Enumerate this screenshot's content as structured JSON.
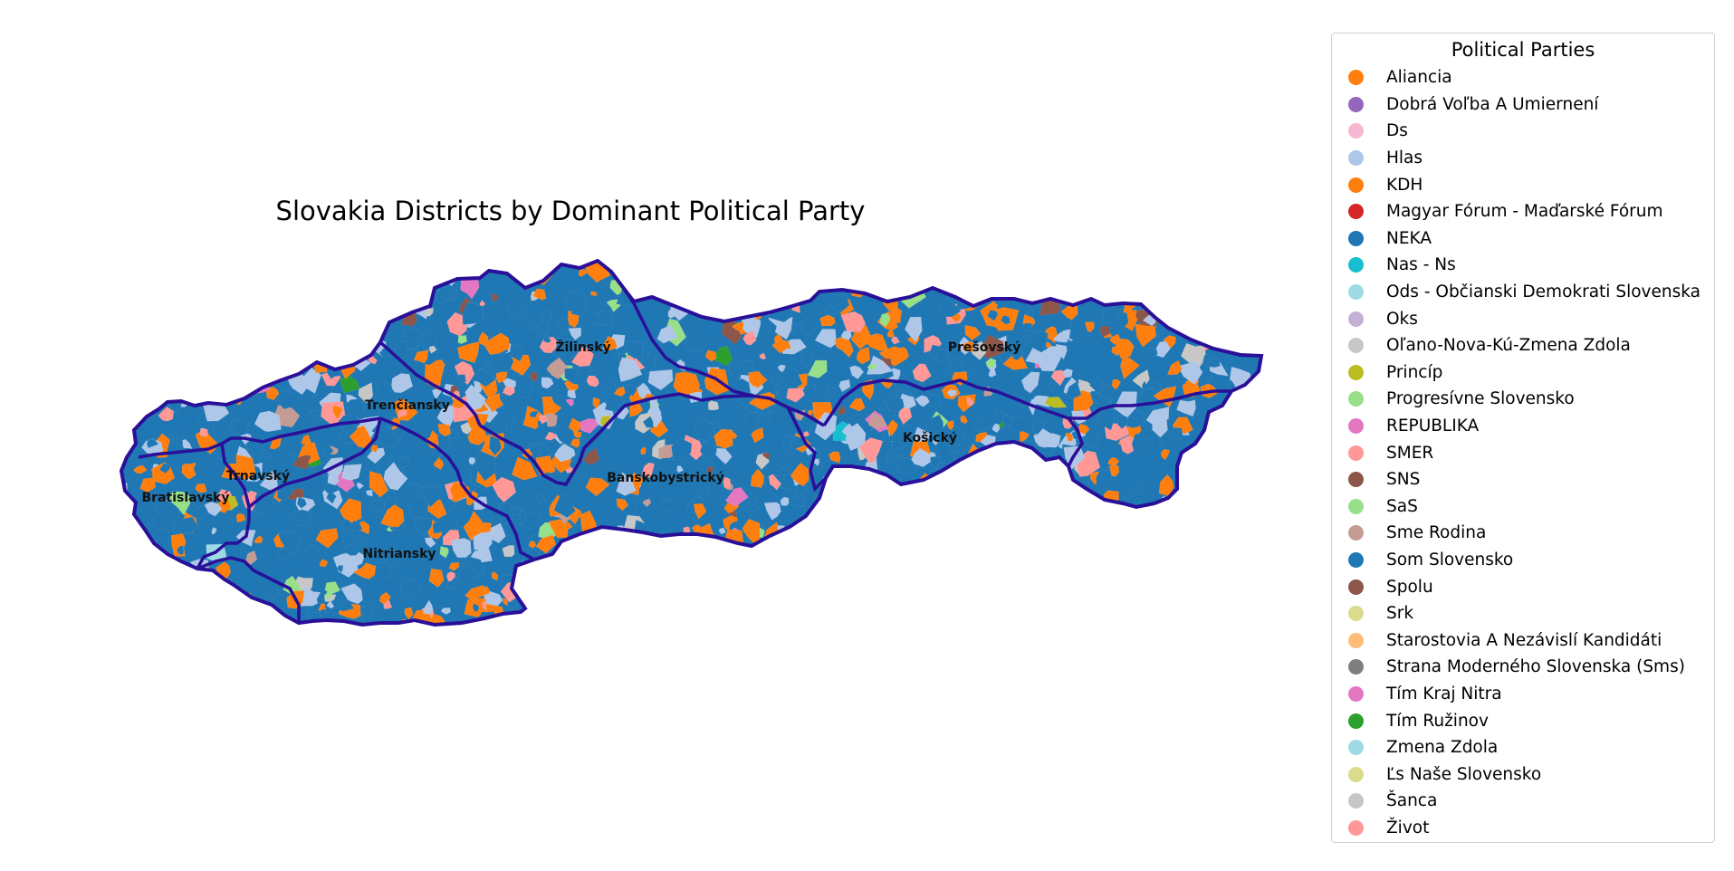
{
  "map": {
    "title": "Slovakia Districts by Dominant Political Party",
    "regions": [
      {
        "name": "Bratislavský",
        "label": "Bratislavský"
      },
      {
        "name": "Trnavský",
        "label": "Trnavský"
      },
      {
        "name": "Trenčiansky",
        "label": "Trenčiansky"
      },
      {
        "name": "Nitriansky",
        "label": "Nitriansky"
      },
      {
        "name": "Žilinský",
        "label": "Žilinský"
      },
      {
        "name": "Banskobystrický",
        "label": "Banskobystrický"
      },
      {
        "name": "Prešovský",
        "label": "Prešovský"
      },
      {
        "name": "Košický",
        "label": "Košický"
      }
    ],
    "border_color": "#2a0f99",
    "base_color": "#1f77b4"
  },
  "legend": {
    "title": "Political Parties",
    "items": [
      {
        "label": "Aliancia",
        "color": "#ff7f0e"
      },
      {
        "label": "Dobrá Voľba A Umiernení",
        "color": "#9467bd"
      },
      {
        "label": "Ds",
        "color": "#f7b6d2"
      },
      {
        "label": "Hlas",
        "color": "#aec7e8"
      },
      {
        "label": "KDH",
        "color": "#ff7f0e"
      },
      {
        "label": "Magyar Fórum - Maďarské Fórum",
        "color": "#d62728"
      },
      {
        "label": "NEKA",
        "color": "#1f77b4"
      },
      {
        "label": "Nas - Ns",
        "color": "#17becf"
      },
      {
        "label": "Ods - Občianski Demokrati Slovenska",
        "color": "#9edae5"
      },
      {
        "label": "Oks",
        "color": "#c5b0d5"
      },
      {
        "label": "Oľano-Nova-Kú-Zmena Zdola",
        "color": "#c7c7c7"
      },
      {
        "label": "Princíp",
        "color": "#bcbd22"
      },
      {
        "label": "Progresívne Slovensko",
        "color": "#98df8a"
      },
      {
        "label": "REPUBLIKA",
        "color": "#e377c2"
      },
      {
        "label": "SMER",
        "color": "#ff9896"
      },
      {
        "label": "SNS",
        "color": "#8c564b"
      },
      {
        "label": "SaS",
        "color": "#98df8a"
      },
      {
        "label": "Sme Rodina",
        "color": "#c49c94"
      },
      {
        "label": "Som Slovensko",
        "color": "#1f77b4"
      },
      {
        "label": "Spolu",
        "color": "#8c564b"
      },
      {
        "label": "Srk",
        "color": "#dbdb8d"
      },
      {
        "label": "Starostovia A Nezávislí Kandidáti",
        "color": "#ffbb78"
      },
      {
        "label": "Strana Moderného Slovenska (Sms)",
        "color": "#7f7f7f"
      },
      {
        "label": "Tím Kraj Nitra",
        "color": "#e377c2"
      },
      {
        "label": "Tím Ružinov",
        "color": "#2ca02c"
      },
      {
        "label": "Zmena Zdola",
        "color": "#9edae5"
      },
      {
        "label": "Ľs Naše Slovensko",
        "color": "#dbdb8d"
      },
      {
        "label": "Šanca",
        "color": "#c7c7c7"
      },
      {
        "label": "Život",
        "color": "#ff9896"
      }
    ]
  }
}
